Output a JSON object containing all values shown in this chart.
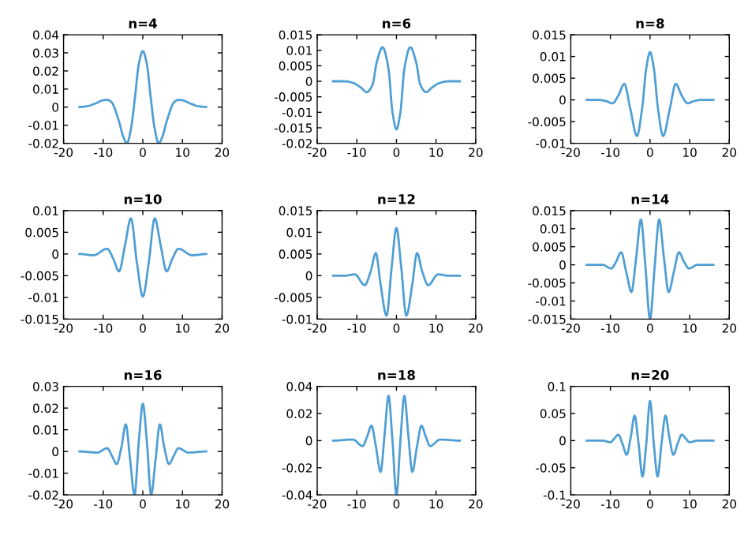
{
  "chart_data": [
    {
      "type": "line",
      "title": "n=4",
      "xlim": [
        -20,
        20
      ],
      "xticks": [
        -20,
        -10,
        0,
        10,
        20
      ],
      "ylim": [
        -0.02,
        0.04
      ],
      "yticks": [
        -0.02,
        -0.01,
        0,
        0.01,
        0.02,
        0.03,
        0.04
      ],
      "grid": false,
      "marker": "none",
      "line_style": "solid",
      "series": [
        {
          "color": "#4f9fd5",
          "x": [
            -16,
            -14,
            -12,
            -10,
            -9,
            -8,
            -6,
            -5,
            -4,
            -3,
            -2,
            -1,
            0,
            1,
            2,
            3,
            4,
            5,
            6,
            8,
            9,
            10,
            12,
            14,
            16
          ],
          "values": [
            0,
            0.0005,
            0.002,
            0.0038,
            0.004,
            0.003,
            -0.008,
            -0.016,
            -0.02,
            -0.012,
            0.005,
            0.024,
            0.031,
            0.024,
            0.005,
            -0.012,
            -0.02,
            -0.016,
            -0.008,
            0.003,
            0.004,
            0.0038,
            0.002,
            0.0005,
            0
          ]
        }
      ]
    },
    {
      "type": "line",
      "title": "n=6",
      "xlim": [
        -20,
        20
      ],
      "xticks": [
        -20,
        -10,
        0,
        10,
        20
      ],
      "ylim": [
        -0.02,
        0.015
      ],
      "yticks": [
        -0.02,
        -0.015,
        -0.01,
        -0.005,
        0,
        0.005,
        0.01,
        0.015
      ],
      "grid": false,
      "marker": "none",
      "line_style": "solid",
      "series": [
        {
          "color": "#4f9fd5",
          "x": [
            -16,
            -13,
            -11,
            -9,
            -7.5,
            -6,
            -5,
            -3.5,
            -2,
            -1,
            0,
            1,
            2,
            3.5,
            5,
            6,
            7.5,
            9,
            11,
            13,
            16
          ],
          "values": [
            0,
            0,
            -0.0005,
            -0.002,
            -0.0035,
            -0.001,
            0.006,
            0.011,
            0.004,
            -0.01,
            -0.0155,
            -0.01,
            0.004,
            0.011,
            0.006,
            -0.001,
            -0.0035,
            -0.002,
            -0.0005,
            0,
            0
          ]
        }
      ]
    },
    {
      "type": "line",
      "title": "n=8",
      "xlim": [
        -20,
        20
      ],
      "xticks": [
        -20,
        -10,
        0,
        10,
        20
      ],
      "ylim": [
        -0.01,
        0.015
      ],
      "yticks": [
        -0.01,
        -0.005,
        0,
        0.005,
        0.01,
        0.015
      ],
      "grid": false,
      "marker": "none",
      "line_style": "solid",
      "series": [
        {
          "color": "#4f9fd5",
          "x": [
            -16,
            -13,
            -11,
            -9.5,
            -8,
            -6.5,
            -5,
            -3.3,
            -2,
            -1,
            0,
            1,
            2,
            3.3,
            5,
            6.5,
            8,
            9.5,
            11,
            13,
            16
          ],
          "values": [
            0,
            0,
            -0.0003,
            -0.0008,
            0.001,
            0.0037,
            -0.002,
            -0.0083,
            -0.002,
            0.007,
            0.011,
            0.007,
            -0.002,
            -0.0083,
            -0.002,
            0.0037,
            0.001,
            -0.0008,
            -0.0003,
            0,
            0
          ]
        }
      ]
    },
    {
      "type": "line",
      "title": "n=10",
      "xlim": [
        -20,
        20
      ],
      "xticks": [
        -20,
        -10,
        0,
        10,
        20
      ],
      "ylim": [
        -0.015,
        0.01
      ],
      "yticks": [
        -0.015,
        -0.01,
        -0.005,
        0,
        0.005,
        0.01
      ],
      "grid": false,
      "marker": "none",
      "line_style": "solid",
      "series": [
        {
          "color": "#4f9fd5",
          "x": [
            -16,
            -12.5,
            -9,
            -7.5,
            -6,
            -4.5,
            -3,
            -1.5,
            0,
            1.5,
            3,
            4.5,
            6,
            7.5,
            9,
            12.5,
            16
          ],
          "values": [
            0,
            -0.0003,
            0.0012,
            -0.001,
            -0.004,
            0.002,
            0.0082,
            -0.002,
            -0.0098,
            -0.002,
            0.0082,
            0.002,
            -0.004,
            -0.001,
            0.0012,
            -0.0003,
            0
          ]
        }
      ]
    },
    {
      "type": "line",
      "title": "n=12",
      "xlim": [
        -20,
        20
      ],
      "xticks": [
        -20,
        -10,
        0,
        10,
        20
      ],
      "ylim": [
        -0.01,
        0.015
      ],
      "yticks": [
        -0.01,
        -0.005,
        0,
        0.005,
        0.01,
        0.015
      ],
      "grid": false,
      "marker": "none",
      "line_style": "solid",
      "series": [
        {
          "color": "#4f9fd5",
          "x": [
            -16,
            -13,
            -10.5,
            -8,
            -6.5,
            -5.2,
            -4,
            -2.5,
            -1.2,
            0,
            1.2,
            2.5,
            4,
            5.2,
            6.5,
            8,
            10.5,
            13,
            16
          ],
          "values": [
            0,
            0,
            0.0003,
            -0.0022,
            0.001,
            0.0052,
            -0.002,
            -0.0092,
            0.002,
            0.011,
            0.002,
            -0.0092,
            -0.002,
            0.0052,
            0.001,
            -0.0022,
            0.0003,
            0,
            0
          ]
        }
      ]
    },
    {
      "type": "line",
      "title": "n=14",
      "xlim": [
        -20,
        20
      ],
      "xticks": [
        -20,
        -10,
        0,
        10,
        20
      ],
      "ylim": [
        -0.015,
        0.015
      ],
      "yticks": [
        -0.015,
        -0.01,
        -0.005,
        0,
        0.005,
        0.01,
        0.015
      ],
      "grid": false,
      "marker": "none",
      "line_style": "solid",
      "series": [
        {
          "color": "#4f9fd5",
          "x": [
            -16,
            -12,
            -9.8,
            -8.5,
            -7.3,
            -6,
            -4.7,
            -3.5,
            -2.3,
            -1.2,
            0,
            1.2,
            2.3,
            3.5,
            4.7,
            6,
            7.3,
            8.5,
            9.8,
            12,
            16
          ],
          "values": [
            0,
            0,
            -0.001,
            0.001,
            0.0035,
            -0.002,
            -0.0075,
            0.002,
            0.0125,
            0,
            -0.015,
            0,
            0.0125,
            0.002,
            -0.0075,
            -0.002,
            0.0035,
            0.001,
            -0.001,
            0,
            0
          ]
        }
      ]
    },
    {
      "type": "line",
      "title": "n=16",
      "xlim": [
        -20,
        20
      ],
      "xticks": [
        -20,
        -10,
        0,
        10,
        20
      ],
      "ylim": [
        -0.02,
        0.03
      ],
      "yticks": [
        -0.02,
        -0.01,
        0,
        0.01,
        0.02,
        0.03
      ],
      "grid": false,
      "marker": "none",
      "line_style": "solid",
      "series": [
        {
          "color": "#4f9fd5",
          "x": [
            -16,
            -11.5,
            -9,
            -7.8,
            -6.6,
            -5.4,
            -4.3,
            -3.2,
            -2.1,
            -1,
            0,
            1,
            2.1,
            3.2,
            4.3,
            5.4,
            6.6,
            7.8,
            9,
            11.5,
            16
          ],
          "values": [
            0,
            -0.0005,
            0.0015,
            -0.002,
            -0.0058,
            0.002,
            0.0125,
            -0.004,
            -0.02,
            0.005,
            0.022,
            0.005,
            -0.02,
            -0.004,
            0.0125,
            0.002,
            -0.0058,
            -0.002,
            0.0015,
            -0.0005,
            0
          ]
        }
      ]
    },
    {
      "type": "line",
      "title": "n=18",
      "xlim": [
        -20,
        20
      ],
      "xticks": [
        -20,
        -10,
        0,
        10,
        20
      ],
      "ylim": [
        -0.04,
        0.04
      ],
      "yticks": [
        -0.04,
        -0.02,
        0,
        0.02,
        0.04
      ],
      "grid": false,
      "marker": "none",
      "line_style": "solid",
      "series": [
        {
          "color": "#4f9fd5",
          "x": [
            -16,
            -11,
            -8.5,
            -7.4,
            -6.3,
            -5.2,
            -4,
            -3,
            -2,
            -1,
            0,
            1,
            2,
            3,
            4,
            5.2,
            6.3,
            7.4,
            8.5,
            11,
            16
          ],
          "values": [
            0,
            0.0008,
            -0.004,
            0.003,
            0.011,
            -0.004,
            -0.023,
            0.004,
            0.033,
            0,
            -0.04,
            0,
            0.033,
            0.004,
            -0.023,
            -0.004,
            0.011,
            0.003,
            -0.004,
            0.0008,
            0
          ]
        }
      ]
    },
    {
      "type": "line",
      "title": "n=20",
      "xlim": [
        -20,
        20
      ],
      "xticks": [
        -20,
        -10,
        0,
        10,
        20
      ],
      "ylim": [
        -0.1,
        0.1
      ],
      "yticks": [
        -0.1,
        -0.05,
        0,
        0.05,
        0.1
      ],
      "grid": false,
      "marker": "none",
      "line_style": "solid",
      "series": [
        {
          "color": "#4f9fd5",
          "x": [
            -16,
            -12,
            -10,
            -9,
            -8,
            -7,
            -5.9,
            -4.9,
            -3.9,
            -2.9,
            -1.9,
            -1,
            0,
            1,
            1.9,
            2.9,
            3.9,
            4.9,
            5.9,
            7,
            8,
            9,
            10,
            12,
            16
          ],
          "values": [
            0,
            0,
            -0.003,
            0.004,
            0.011,
            -0.005,
            -0.026,
            0.005,
            0.046,
            -0.005,
            -0.066,
            -0.01,
            0.073,
            -0.01,
            -0.066,
            -0.005,
            0.046,
            0.005,
            -0.026,
            -0.005,
            0.011,
            0.004,
            -0.003,
            0,
            0
          ]
        }
      ]
    }
  ]
}
